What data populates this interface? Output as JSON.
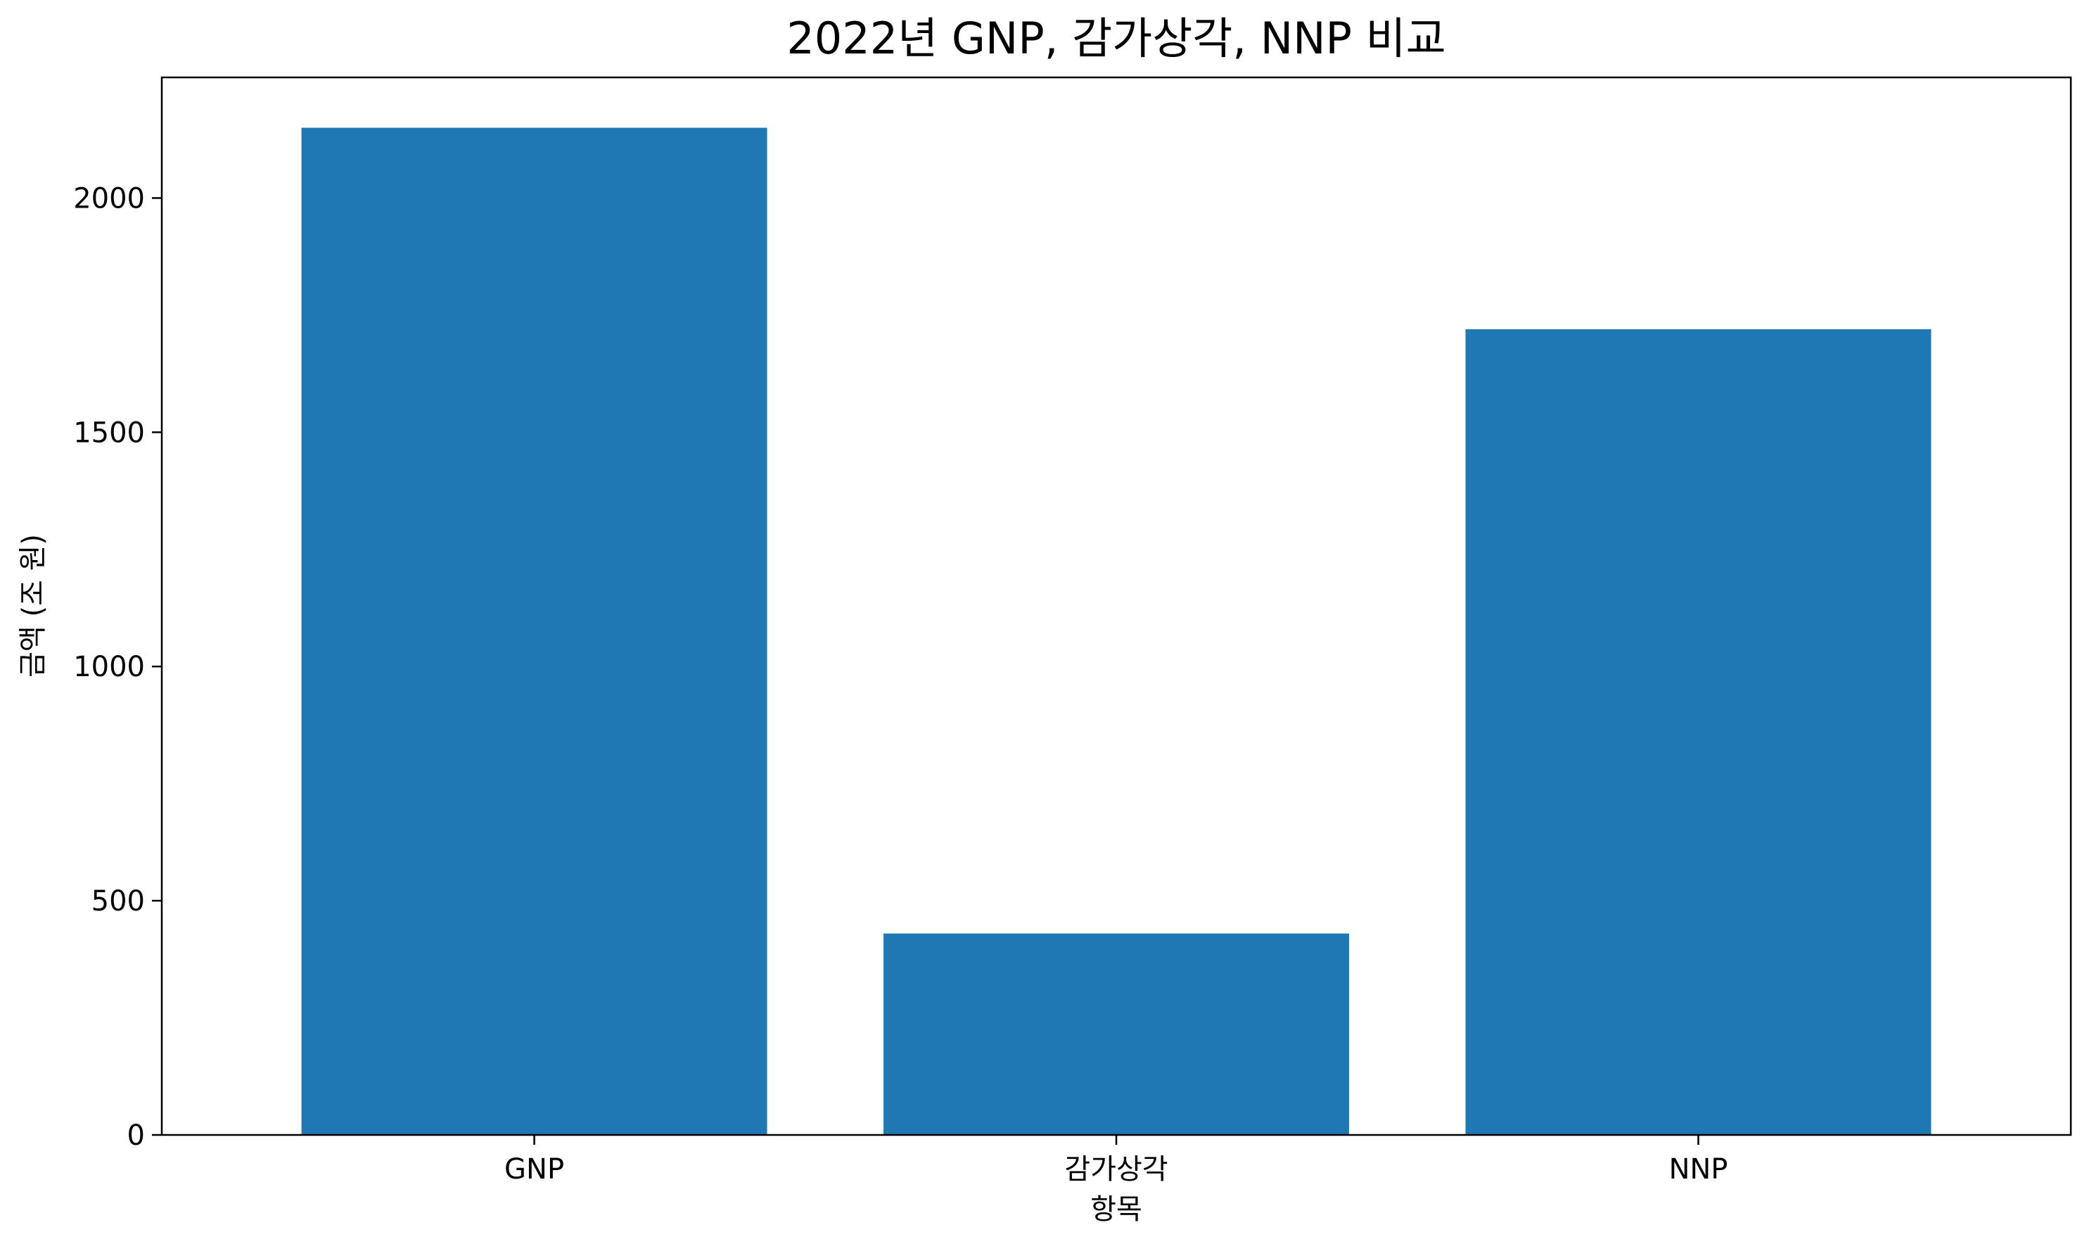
{
  "chart_data": {
    "type": "bar",
    "title": "2022년 GNP, 감가상각, NNP 비교",
    "xlabel": "항목",
    "ylabel": "금액 (조 원)",
    "categories": [
      "GNP",
      "감가상각",
      "NNP"
    ],
    "values": [
      2150,
      430,
      1720
    ],
    "ylim": [
      0,
      2257.5
    ],
    "yticks": [
      0,
      500,
      1000,
      1500,
      2000
    ],
    "grid": false,
    "legend": "none",
    "bar_color": "#1f77b4"
  }
}
